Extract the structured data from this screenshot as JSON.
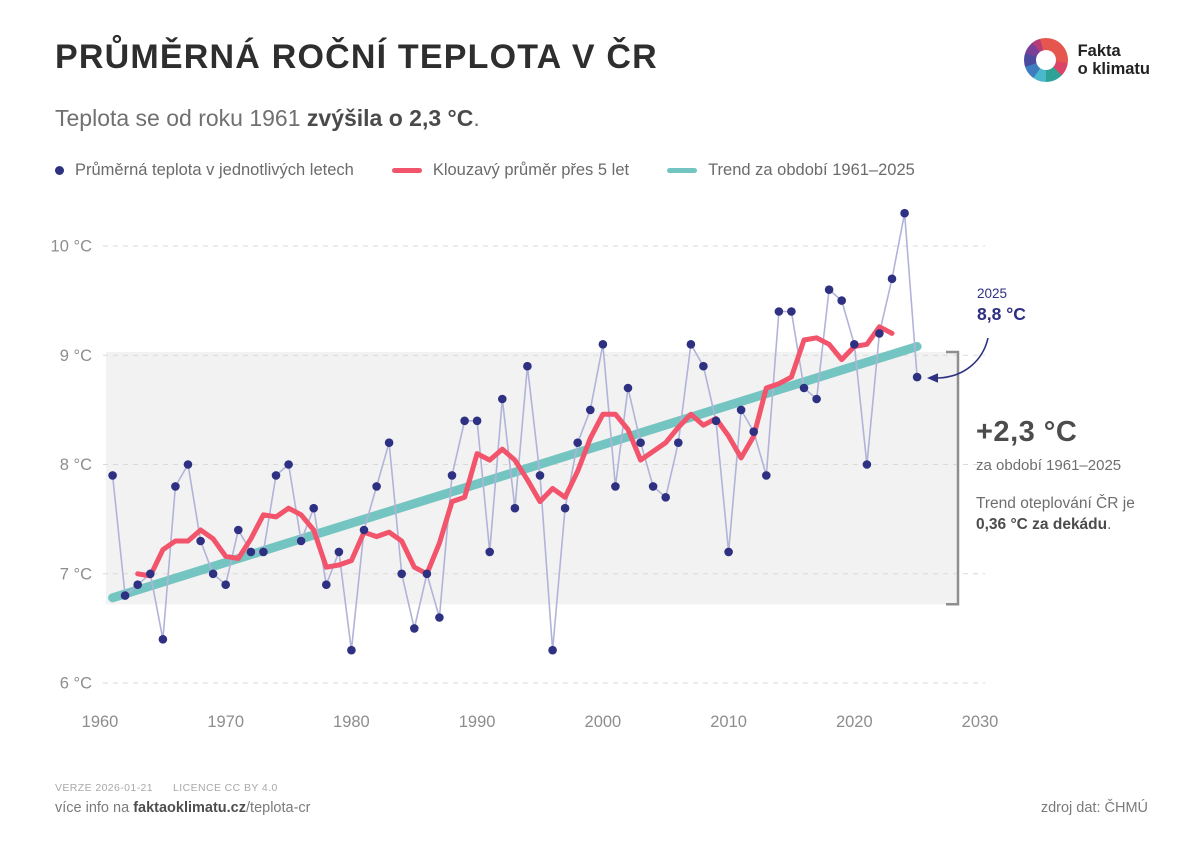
{
  "header": {
    "title": "PRŮMĚRNÁ ROČNÍ TEPLOTA V ČR",
    "subtitle_prefix": "Teplota se od roku 1961 ",
    "subtitle_bold": "zvýšila o 2,3 °C",
    "subtitle_suffix": "."
  },
  "logo": {
    "line1": "Fakta",
    "line2": "o klimatu"
  },
  "legend": [
    {
      "label": "Průměrná teplota v jednotlivých letech",
      "type": "dot",
      "color": "#2e3082"
    },
    {
      "label": "Klouzavý průměr přes 5 let",
      "type": "line",
      "color": "#f2546b"
    },
    {
      "label": "Trend za období 1961–2025",
      "type": "line",
      "color": "#74c5c1"
    }
  ],
  "annotation": {
    "year": "2025",
    "value": "8,8 °C"
  },
  "callout": {
    "delta": "+2,3 °C",
    "period": "za období 1961–2025",
    "trend_prefix": "Trend oteplování ČR je ",
    "trend_bold": "0,36 °C za dekádu",
    "trend_suffix": "."
  },
  "footer": {
    "version": "VERZE 2026-01-21",
    "licence": "LICENCE CC BY 4.0",
    "info_prefix": "více info na ",
    "info_bold": "faktaoklimatu.cz",
    "info_suffix": "/teplota-cr",
    "source": "zdroj dat: ČHMÚ"
  },
  "chart_data": {
    "type": "line",
    "title": "Průměrná roční teplota v ČR",
    "xlabel": "",
    "ylabel": "°C",
    "xlim": [
      1960,
      2030
    ],
    "ylim": [
      5.8,
      10.5
    ],
    "grid": "dashed horizontal",
    "legend_position": "top",
    "x_ticks": [
      1960,
      1970,
      1980,
      1990,
      2000,
      2010,
      2020,
      2030
    ],
    "y_ticks": [
      {
        "value": 6,
        "label": "6 °C"
      },
      {
        "value": 7,
        "label": "7 °C"
      },
      {
        "value": 8,
        "label": "8 °C"
      },
      {
        "value": 9,
        "label": "9 °C"
      },
      {
        "value": 10,
        "label": "10 °C"
      }
    ],
    "annual": {
      "name": "Průměrná teplota v jednotlivých letech",
      "start_year": 1961,
      "values": [
        7.9,
        6.8,
        6.9,
        7.0,
        6.4,
        7.8,
        8.0,
        7.3,
        7.0,
        6.9,
        7.4,
        7.2,
        7.2,
        7.9,
        8.0,
        7.3,
        7.6,
        6.9,
        7.2,
        6.3,
        7.4,
        7.8,
        8.2,
        7.0,
        6.5,
        7.0,
        6.6,
        7.9,
        8.4,
        8.4,
        7.2,
        8.6,
        7.6,
        8.9,
        7.9,
        6.3,
        7.6,
        8.2,
        8.5,
        9.1,
        7.8,
        8.7,
        8.2,
        7.8,
        7.7,
        8.2,
        9.1,
        8.9,
        8.4,
        7.2,
        8.5,
        8.3,
        7.9,
        9.4,
        9.4,
        8.7,
        8.6,
        9.6,
        9.5,
        9.1,
        8.0,
        9.2,
        9.7,
        10.3,
        8.8
      ]
    },
    "moving_average": {
      "name": "Klouzavý průměr přes 5 let",
      "start_year": 1963,
      "values": [
        7.0,
        6.98,
        7.22,
        7.3,
        7.3,
        7.4,
        7.32,
        7.16,
        7.14,
        7.32,
        7.54,
        7.52,
        7.6,
        7.54,
        7.4,
        7.06,
        7.08,
        7.12,
        7.38,
        7.34,
        7.38,
        7.3,
        7.06,
        7.0,
        7.28,
        7.66,
        7.7,
        8.1,
        8.04,
        8.14,
        8.04,
        7.86,
        7.66,
        7.78,
        7.7,
        7.94,
        8.24,
        8.46,
        8.46,
        8.32,
        8.04,
        8.12,
        8.2,
        8.34,
        8.46,
        8.36,
        8.42,
        8.26,
        8.06,
        8.26,
        8.7,
        8.74,
        8.8,
        9.14,
        9.16,
        9.1,
        8.96,
        9.08,
        9.1,
        9.26,
        9.2
      ]
    },
    "trend": {
      "name": "Trend za období 1961–2025",
      "start_year": 1961,
      "start_value": 6.78,
      "end_year": 2025,
      "end_value": 9.08,
      "rate_per_decade": 0.36,
      "total_change": 2.3
    },
    "band": {
      "from": 6.72,
      "to": 9.03
    },
    "colors": {
      "annual_dot": "#2e3082",
      "annual_line": "#b1b3d9",
      "moving_avg": "#f2546b",
      "trend": "#74c5c1",
      "band": "#f2f2f2",
      "grid": "#d9d9d9",
      "axis_text": "#8d8d8d",
      "bracket": "#8f8f8f"
    }
  }
}
